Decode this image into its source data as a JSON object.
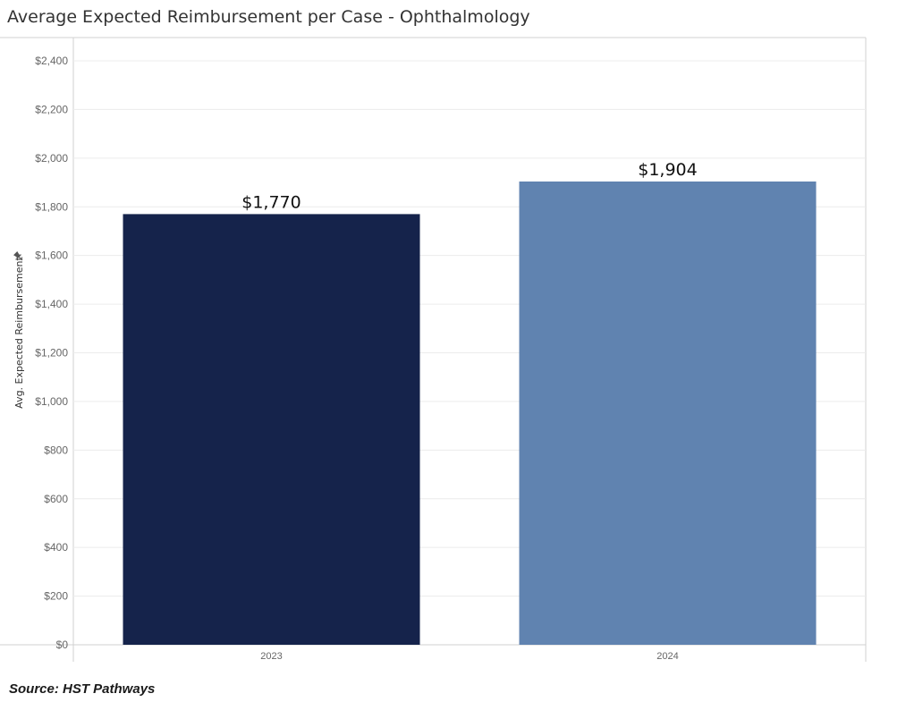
{
  "chart_data": {
    "type": "bar",
    "title": "Average Expected Reimbursement per Case - Ophthalmology",
    "xlabel": "",
    "ylabel": "Avg. Expected Reimbursement",
    "categories": [
      "2023",
      "2024"
    ],
    "values": [
      1770,
      1904
    ],
    "data_labels": [
      "$1,770",
      "$1,904"
    ],
    "ylim": [
      0,
      2400
    ],
    "y_ticks": [
      0,
      200,
      400,
      600,
      800,
      1000,
      1200,
      1400,
      1600,
      1800,
      2000,
      2200,
      2400
    ],
    "y_tick_labels": [
      "$0",
      "$200",
      "$400",
      "$600",
      "$800",
      "$1,000",
      "$1,200",
      "$1,400",
      "$1,600",
      "$1,800",
      "$2,000",
      "$2,200",
      "$2,400"
    ],
    "bar_colors": [
      "#15234b",
      "#6083b0"
    ],
    "grid": true,
    "legend": "none"
  },
  "source": "Source: HST Pathways",
  "pin_icon": "pin-icon"
}
